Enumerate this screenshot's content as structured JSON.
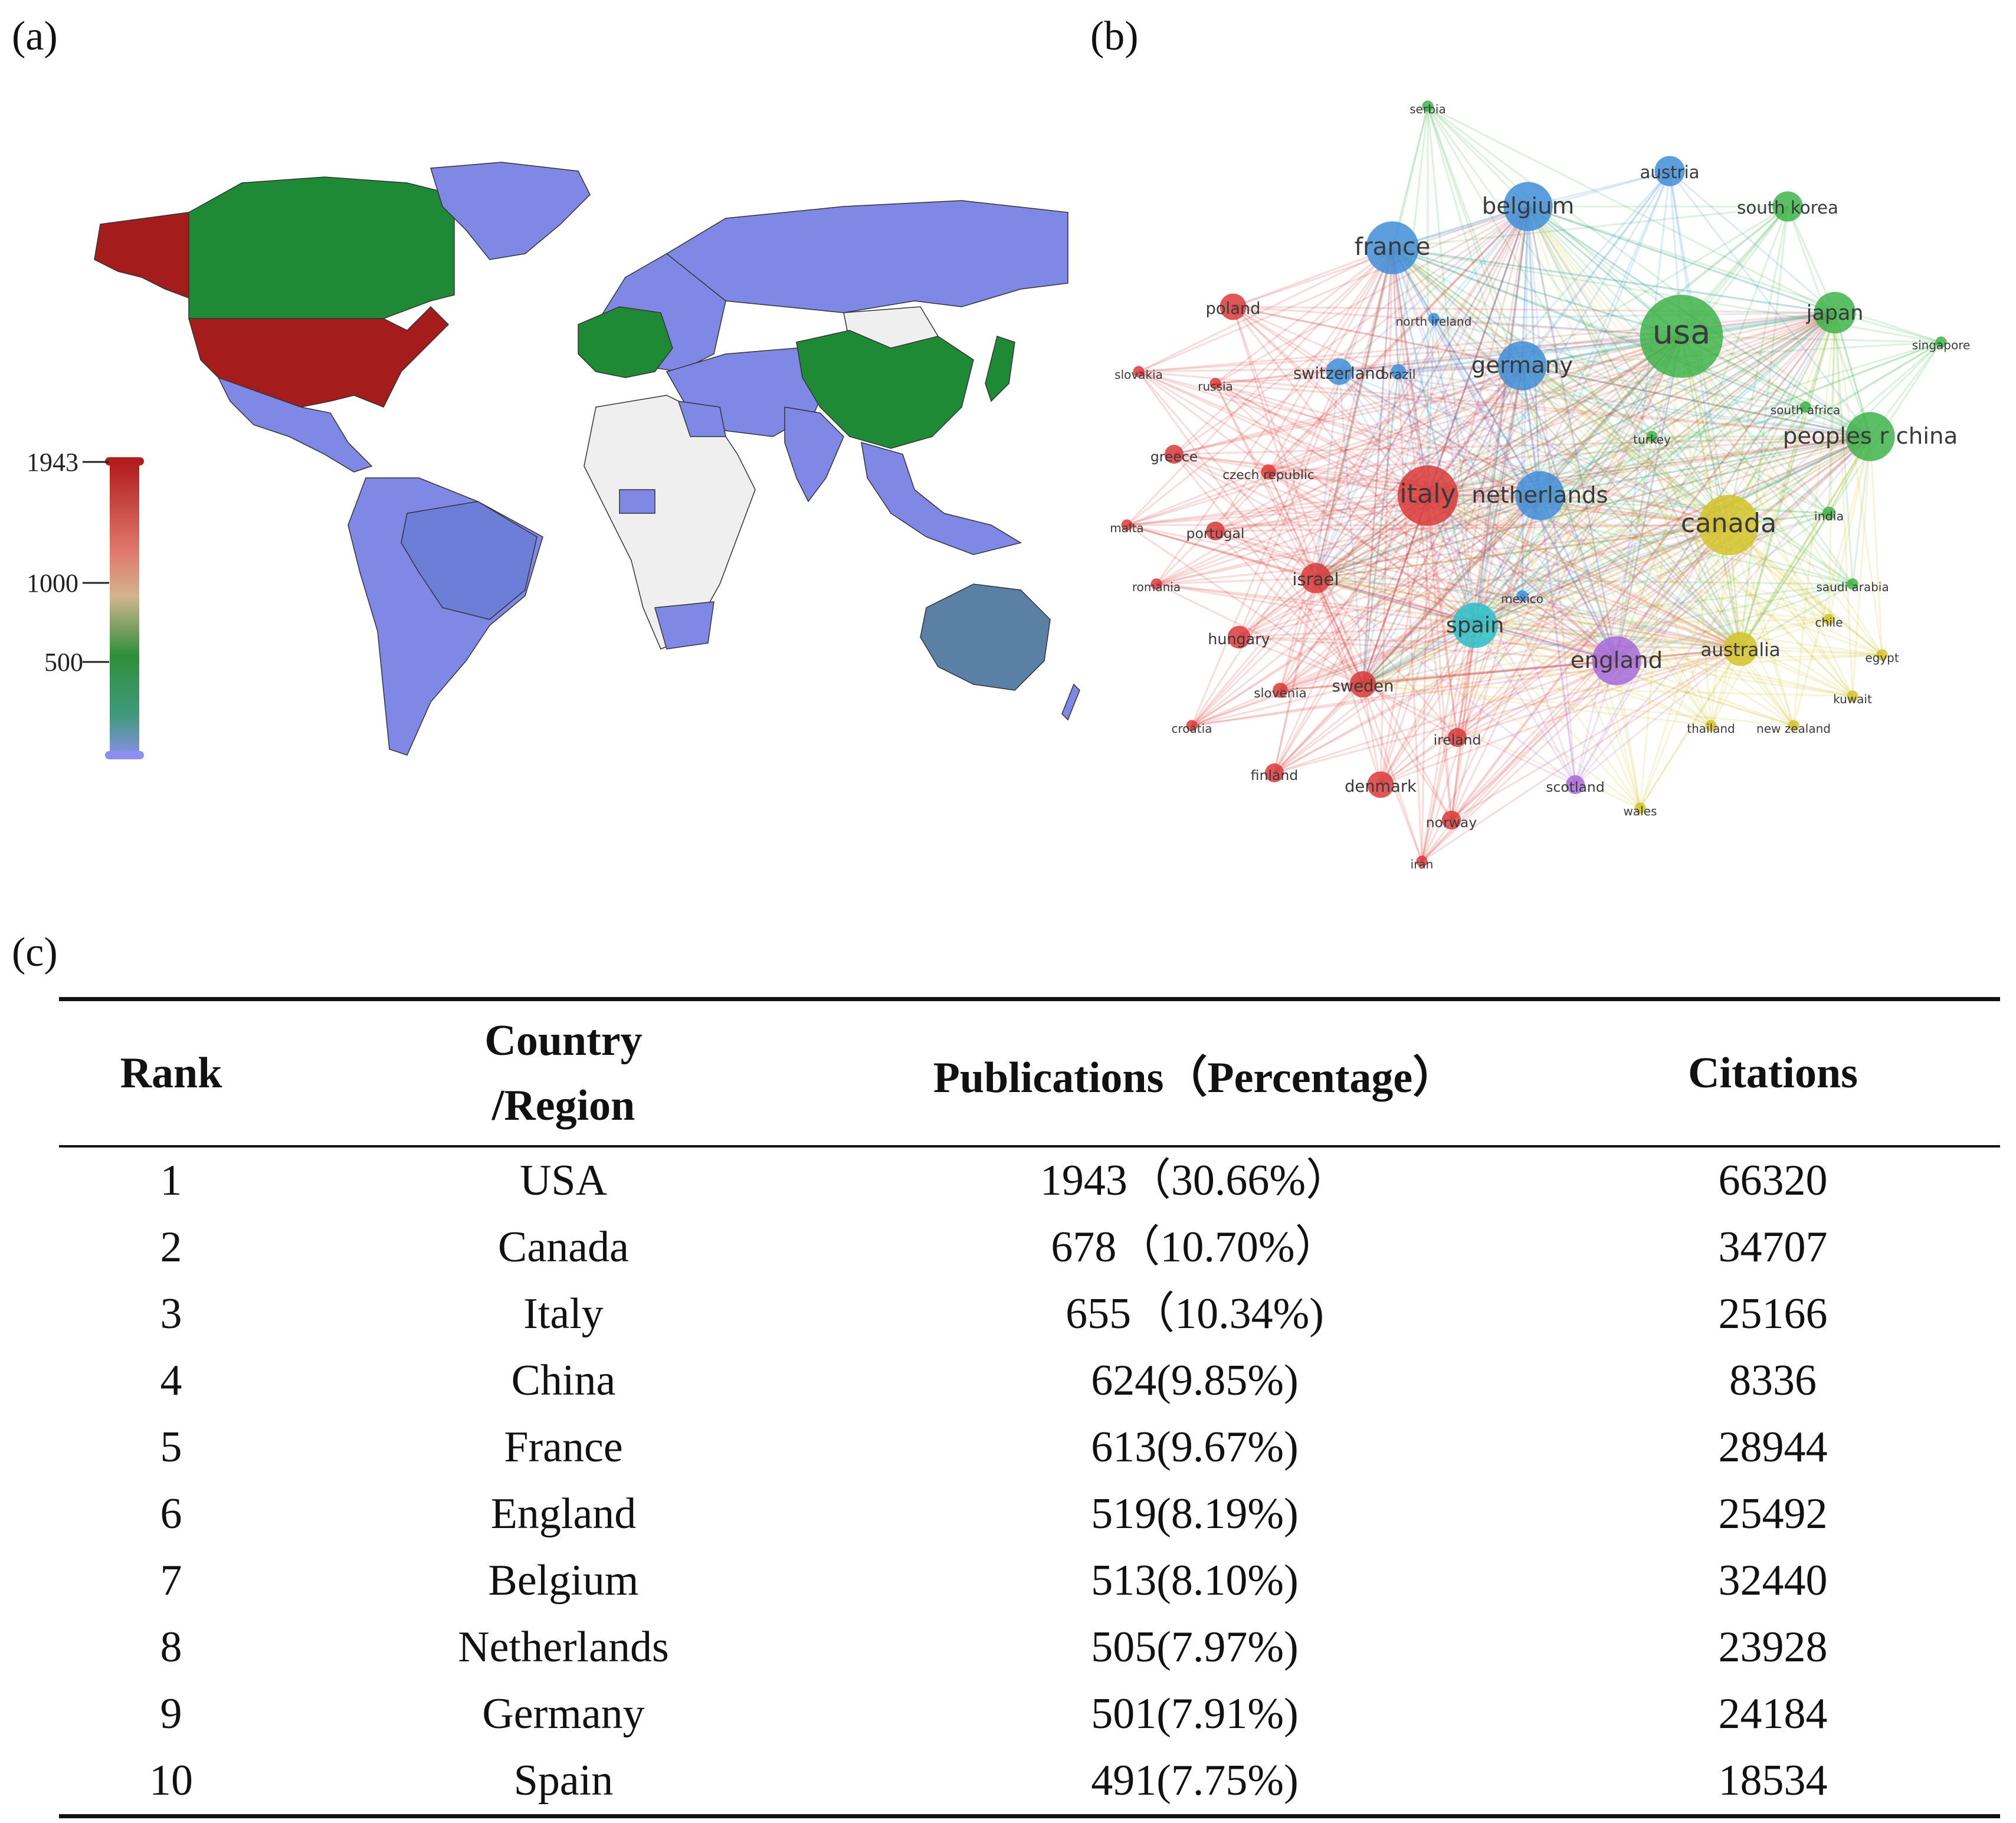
{
  "panel_labels": {
    "a": "(a)",
    "b": "(b)",
    "c": "(c)"
  },
  "map": {
    "legend_ticks": [
      "1943",
      "1000",
      "500"
    ],
    "colors": {
      "high": "#a51c1c",
      "mid": "#1f8a36",
      "low": "#8088e6",
      "australia": "#5a80a6",
      "no_data": "#efefef"
    }
  },
  "network": {
    "clusters": {
      "red": "#d93a3a",
      "green": "#3fb34a",
      "blue": "#3f8ed8",
      "yellow": "#d4c32a",
      "cyan": "#2bc0c8",
      "purple": "#a66ad8"
    },
    "nodes": [
      {
        "label": "usa",
        "cluster": "green",
        "size": 44
      },
      {
        "label": "peoples r china",
        "cluster": "green",
        "size": 26
      },
      {
        "label": "japan",
        "cluster": "green",
        "size": 22
      },
      {
        "label": "south korea",
        "cluster": "green",
        "size": 16
      },
      {
        "label": "serbia",
        "cluster": "green",
        "size": 6
      },
      {
        "label": "singapore",
        "cluster": "green",
        "size": 6
      },
      {
        "label": "south africa",
        "cluster": "green",
        "size": 6
      },
      {
        "label": "turkey",
        "cluster": "green",
        "size": 6
      },
      {
        "label": "india",
        "cluster": "green",
        "size": 7
      },
      {
        "label": "saudi arabia",
        "cluster": "green",
        "size": 6
      },
      {
        "label": "belgium",
        "cluster": "blue",
        "size": 26
      },
      {
        "label": "france",
        "cluster": "blue",
        "size": 28
      },
      {
        "label": "austria",
        "cluster": "blue",
        "size": 16
      },
      {
        "label": "germany",
        "cluster": "blue",
        "size": 26
      },
      {
        "label": "netherlands",
        "cluster": "blue",
        "size": 26
      },
      {
        "label": "switzerland",
        "cluster": "blue",
        "size": 14
      },
      {
        "label": "brazil",
        "cluster": "blue",
        "size": 8
      },
      {
        "label": "north ireland",
        "cluster": "blue",
        "size": 6
      },
      {
        "label": "mexico",
        "cluster": "blue",
        "size": 6
      },
      {
        "label": "italy",
        "cluster": "red",
        "size": 32
      },
      {
        "label": "poland",
        "cluster": "red",
        "size": 14
      },
      {
        "label": "slovakia",
        "cluster": "red",
        "size": 6
      },
      {
        "label": "russia",
        "cluster": "red",
        "size": 6
      },
      {
        "label": "greece",
        "cluster": "red",
        "size": 10
      },
      {
        "label": "czech republic",
        "cluster": "red",
        "size": 8
      },
      {
        "label": "portugal",
        "cluster": "red",
        "size": 10
      },
      {
        "label": "malta",
        "cluster": "red",
        "size": 6
      },
      {
        "label": "israel",
        "cluster": "red",
        "size": 16
      },
      {
        "label": "romania",
        "cluster": "red",
        "size": 6
      },
      {
        "label": "hungary",
        "cluster": "red",
        "size": 12
      },
      {
        "label": "slovenia",
        "cluster": "red",
        "size": 8
      },
      {
        "label": "sweden",
        "cluster": "red",
        "size": 14
      },
      {
        "label": "croatia",
        "cluster": "red",
        "size": 6
      },
      {
        "label": "finland",
        "cluster": "red",
        "size": 10
      },
      {
        "label": "denmark",
        "cluster": "red",
        "size": 14
      },
      {
        "label": "ireland",
        "cluster": "red",
        "size": 10
      },
      {
        "label": "norway",
        "cluster": "red",
        "size": 10
      },
      {
        "label": "iran",
        "cluster": "red",
        "size": 6
      },
      {
        "label": "canada",
        "cluster": "yellow",
        "size": 32
      },
      {
        "label": "australia",
        "cluster": "yellow",
        "size": 18
      },
      {
        "label": "chile",
        "cluster": "yellow",
        "size": 6
      },
      {
        "label": "egypt",
        "cluster": "yellow",
        "size": 6
      },
      {
        "label": "kuwait",
        "cluster": "yellow",
        "size": 6
      },
      {
        "label": "new zealand",
        "cluster": "yellow",
        "size": 6
      },
      {
        "label": "thailand",
        "cluster": "yellow",
        "size": 6
      },
      {
        "label": "wales",
        "cluster": "yellow",
        "size": 6
      },
      {
        "label": "spain",
        "cluster": "cyan",
        "size": 24
      },
      {
        "label": "england",
        "cluster": "purple",
        "size": 26
      },
      {
        "label": "scotland",
        "cluster": "purple",
        "size": 10
      }
    ]
  },
  "table": {
    "headers": {
      "rank": "Rank",
      "country_line1": "Country",
      "country_line2": "/Region",
      "publications": "Publications（Percentage）",
      "citations": "Citations"
    },
    "rows": [
      {
        "rank": "1",
        "country": "USA",
        "publications": "1943（30.66%）",
        "citations": "66320"
      },
      {
        "rank": "2",
        "country": "Canada",
        "publications": "678（10.70%）",
        "citations": "34707"
      },
      {
        "rank": "3",
        "country": "Italy",
        "publications": "655（10.34%)",
        "citations": "25166"
      },
      {
        "rank": "4",
        "country": "China",
        "publications": "624(9.85%)",
        "citations": "8336"
      },
      {
        "rank": "5",
        "country": "France",
        "publications": "613(9.67%)",
        "citations": "28944"
      },
      {
        "rank": "6",
        "country": "England",
        "publications": "519(8.19%)",
        "citations": "25492"
      },
      {
        "rank": "7",
        "country": "Belgium",
        "publications": "513(8.10%)",
        "citations": "32440"
      },
      {
        "rank": "8",
        "country": "Netherlands",
        "publications": "505(7.97%)",
        "citations": "23928"
      },
      {
        "rank": "9",
        "country": "Germany",
        "publications": "501(7.91%)",
        "citations": "24184"
      },
      {
        "rank": "10",
        "country": "Spain",
        "publications": "491(7.75%)",
        "citations": "18534"
      }
    ]
  }
}
